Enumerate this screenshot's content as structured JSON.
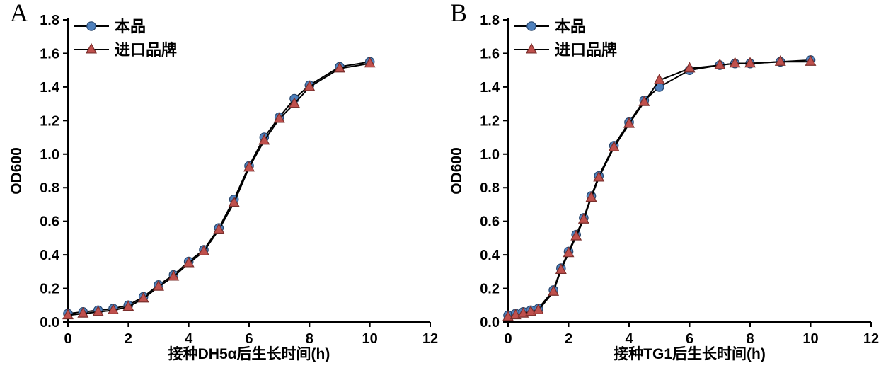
{
  "figure": {
    "background": "#ffffff",
    "panel_a_label": "A",
    "panel_b_label": "B"
  },
  "colors": {
    "axis": "#000000",
    "line": "#000000",
    "product_marker_fill": "#4f81bd",
    "product_marker_stroke": "#27466e",
    "import_marker_fill": "#c0504d",
    "import_marker_stroke": "#7a2f2c"
  },
  "chart_data": [
    {
      "panel_label": "A",
      "type": "line",
      "title": "",
      "xlabel": "接种DH5α后生长时间(h)",
      "ylabel": "OD600",
      "xlim": [
        0,
        12
      ],
      "ylim": [
        0,
        1.8
      ],
      "xticks": [
        0,
        2,
        4,
        6,
        8,
        10,
        12
      ],
      "yticks": [
        0,
        0.2,
        0.4,
        0.6,
        0.8,
        1.0,
        1.2,
        1.4,
        1.6,
        1.8
      ],
      "grid": false,
      "legend_position": "top-left",
      "series": [
        {
          "name": "本品",
          "marker": "circle",
          "marker_color": "#4f81bd",
          "line_color": "#000000",
          "x": [
            0,
            0.5,
            1,
            1.5,
            2,
            2.5,
            3,
            3.5,
            4,
            4.5,
            5,
            5.5,
            6,
            6.5,
            7,
            7.5,
            8,
            9,
            10
          ],
          "y": [
            0.05,
            0.06,
            0.07,
            0.08,
            0.1,
            0.15,
            0.22,
            0.28,
            0.36,
            0.43,
            0.56,
            0.73,
            0.93,
            1.1,
            1.22,
            1.33,
            1.41,
            1.52,
            1.55
          ]
        },
        {
          "name": "进口品牌",
          "marker": "triangle",
          "marker_color": "#c0504d",
          "line_color": "#000000",
          "x": [
            0,
            0.5,
            1,
            1.5,
            2,
            2.5,
            3,
            3.5,
            4,
            4.5,
            5,
            5.5,
            6,
            6.5,
            7,
            7.5,
            8,
            9,
            10
          ],
          "y": [
            0.04,
            0.05,
            0.06,
            0.07,
            0.09,
            0.14,
            0.21,
            0.27,
            0.35,
            0.42,
            0.55,
            0.71,
            0.92,
            1.08,
            1.21,
            1.3,
            1.4,
            1.51,
            1.54
          ]
        }
      ]
    },
    {
      "panel_label": "B",
      "type": "line",
      "title": "",
      "xlabel": "接种TG1后生长时间(h)",
      "ylabel": "OD600",
      "xlim": [
        0,
        12
      ],
      "ylim": [
        0,
        1.8
      ],
      "xticks": [
        0,
        2,
        4,
        6,
        8,
        10,
        12
      ],
      "yticks": [
        0,
        0.2,
        0.4,
        0.6,
        0.8,
        1.0,
        1.2,
        1.4,
        1.6,
        1.8
      ],
      "grid": false,
      "legend_position": "top-left",
      "series": [
        {
          "name": "本品",
          "marker": "circle",
          "marker_color": "#4f81bd",
          "line_color": "#000000",
          "x": [
            0,
            0.25,
            0.5,
            0.75,
            1,
            1.5,
            1.75,
            2,
            2.25,
            2.5,
            2.75,
            3,
            3.5,
            4,
            4.5,
            5,
            6,
            7,
            7.5,
            8,
            9,
            10
          ],
          "y": [
            0.04,
            0.05,
            0.06,
            0.07,
            0.08,
            0.19,
            0.32,
            0.42,
            0.52,
            0.62,
            0.75,
            0.87,
            1.05,
            1.19,
            1.32,
            1.4,
            1.5,
            1.53,
            1.54,
            1.54,
            1.55,
            1.56
          ]
        },
        {
          "name": "进口品牌",
          "marker": "triangle",
          "marker_color": "#c0504d",
          "line_color": "#000000",
          "x": [
            0,
            0.25,
            0.5,
            0.75,
            1,
            1.5,
            1.75,
            2,
            2.25,
            2.5,
            2.75,
            3,
            3.5,
            4,
            4.5,
            5,
            6,
            7,
            7.5,
            8,
            9,
            10
          ],
          "y": [
            0.03,
            0.04,
            0.05,
            0.06,
            0.07,
            0.18,
            0.31,
            0.41,
            0.51,
            0.61,
            0.74,
            0.86,
            1.04,
            1.18,
            1.31,
            1.44,
            1.51,
            1.53,
            1.54,
            1.54,
            1.55,
            1.55
          ]
        }
      ]
    }
  ]
}
